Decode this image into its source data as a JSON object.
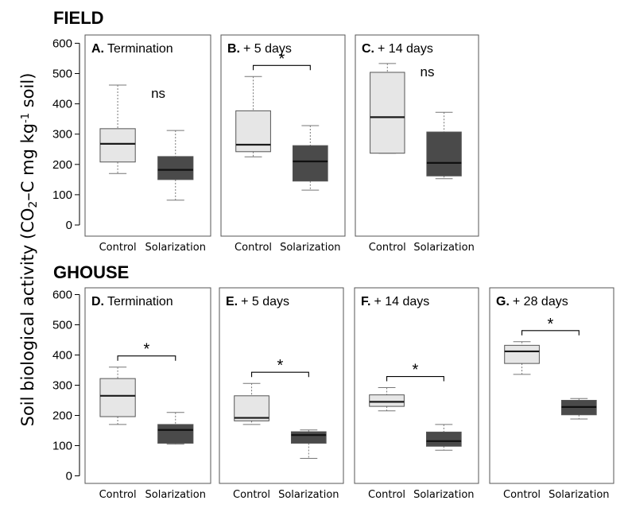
{
  "figure": {
    "ylabel_prefix": "Soil biological activity (CO",
    "ylabel_sub": "2",
    "ylabel_mid": "–C mg kg",
    "ylabel_sup": "-1",
    "ylabel_suffix": " soil)",
    "colors": {
      "control": "#e6e6e6",
      "solarization": "#4a4a4a",
      "median_control": "#1a1a1a",
      "median_solarization": "#111111"
    }
  },
  "chart_data": [
    {
      "group": "FIELD",
      "type": "boxplot",
      "yticks": [
        0,
        100,
        200,
        300,
        400,
        500,
        600
      ],
      "ylim": [
        -25,
        635
      ],
      "panels": [
        {
          "letter": "A.",
          "title": "Termination",
          "sig": "ns",
          "bracket": false,
          "categories": [
            "Control",
            "Solarization"
          ],
          "boxes": [
            {
              "name": "Control",
              "min": 170,
              "q1": 208,
              "median": 268,
              "q3": 318,
              "max": 462
            },
            {
              "name": "Solarization",
              "min": 82,
              "q1": 150,
              "median": 182,
              "q3": 226,
              "max": 312
            }
          ]
        },
        {
          "letter": "B.",
          "title": "+ 5 days",
          "sig": "*",
          "bracket": true,
          "categories": [
            "Control",
            "Solarization"
          ],
          "boxes": [
            {
              "name": "Control",
              "min": 225,
              "q1": 242,
              "median": 265,
              "q3": 377,
              "max": 490
            },
            {
              "name": "Solarization",
              "min": 115,
              "q1": 145,
              "median": 210,
              "q3": 262,
              "max": 328
            }
          ]
        },
        {
          "letter": "C.",
          "title": "+ 14 days",
          "sig": "ns",
          "bracket": false,
          "categories": [
            "Control",
            "Solarization"
          ],
          "boxes": [
            {
              "name": "Control",
              "min": 237,
              "q1": 237,
              "median": 356,
              "q3": 504,
              "max": 533
            },
            {
              "name": "Solarization",
              "min": 153,
              "q1": 162,
              "median": 205,
              "q3": 307,
              "max": 372
            }
          ]
        }
      ]
    },
    {
      "group": "GHOUSE",
      "type": "boxplot",
      "yticks": [
        0,
        100,
        200,
        300,
        400,
        500,
        600
      ],
      "ylim": [
        -25,
        635
      ],
      "panels": [
        {
          "letter": "D.",
          "title": "Termination",
          "sig": "*",
          "bracket": true,
          "categories": [
            "Control",
            "Solarization"
          ],
          "boxes": [
            {
              "name": "Control",
              "min": 170,
              "q1": 196,
              "median": 265,
              "q3": 322,
              "max": 360
            },
            {
              "name": "Solarization",
              "min": 105,
              "q1": 108,
              "median": 152,
              "q3": 170,
              "max": 210
            }
          ]
        },
        {
          "letter": "E.",
          "title": "+ 5 days",
          "sig": "*",
          "bracket": true,
          "categories": [
            "Control",
            "Solarization"
          ],
          "boxes": [
            {
              "name": "Control",
              "min": 170,
              "q1": 182,
              "median": 192,
              "q3": 265,
              "max": 306
            },
            {
              "name": "Solarization",
              "min": 58,
              "q1": 108,
              "median": 135,
              "q3": 146,
              "max": 152
            }
          ]
        },
        {
          "letter": "F.",
          "title": "+ 14 days",
          "sig": "*",
          "bracket": true,
          "categories": [
            "Control",
            "Solarization"
          ],
          "boxes": [
            {
              "name": "Control",
              "min": 215,
              "q1": 230,
              "median": 245,
              "q3": 268,
              "max": 292
            },
            {
              "name": "Solarization",
              "min": 85,
              "q1": 98,
              "median": 115,
              "q3": 145,
              "max": 170
            }
          ]
        },
        {
          "letter": "G.",
          "title": "+ 28 days",
          "sig": "*",
          "bracket": true,
          "categories": [
            "Control",
            "Solarization"
          ],
          "boxes": [
            {
              "name": "Control",
              "min": 336,
              "q1": 372,
              "median": 412,
              "q3": 432,
              "max": 444
            },
            {
              "name": "Solarization",
              "min": 188,
              "q1": 202,
              "median": 228,
              "q3": 250,
              "max": 256
            }
          ]
        }
      ]
    }
  ]
}
